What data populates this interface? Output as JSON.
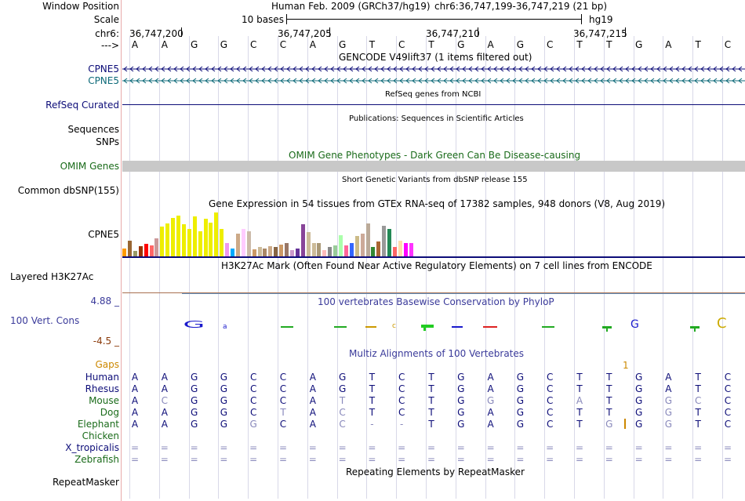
{
  "labels": {
    "window_position": "Window Position",
    "scale": "Scale",
    "chr": "chr6:",
    "arrows": "--->",
    "cpne5_a": "CPNE5",
    "cpne5_b": "CPNE5",
    "refseq_curated": "RefSeq Curated",
    "sequences": "Sequences",
    "snps": "SNPs",
    "omim_genes": "OMIM Genes",
    "common_dbsnp": "Common dbSNP(155)",
    "gtex_cpne5": "CPNE5",
    "layered_h3k27ac": "Layered H3K27Ac",
    "cons_max": "4.88 _",
    "vert_cons": "100 Vert. Cons",
    "cons_min": "-4.5 _",
    "gaps": "Gaps",
    "repeatmasker": "RepeatMasker"
  },
  "header": {
    "assembly": "Human Feb. 2009 (GRCh37/hg19)",
    "position": "chr6:36,747,199-36,747,219 (21 bp)",
    "scale_text": "10 bases",
    "scale_db": "hg19",
    "coords": [
      "36,747,200",
      "36,747,205",
      "36,747,210",
      "36,747,215"
    ]
  },
  "track_titles": {
    "gencode": "GENCODE V49lift37 (1 items filtered out)",
    "refseq": "RefSeq genes from NCBI",
    "publications": "Publications: Sequences in Scientific Articles",
    "omim": "OMIM Gene Phenotypes - Dark Green Can Be Disease-causing",
    "dbsnp": "Short Genetic Variants from dbSNP release 155",
    "gtex": "Gene Expression in 54 tissues from GTEx RNA-seq of 17382 samples, 948 donors (V8, Aug 2019)",
    "h3k27ac": "H3K27Ac Mark (Often Found Near Active Regulatory Elements) on 7 cell lines from ENCODE",
    "phylop": "100 vertebrates Basewise Conservation by PhyloP",
    "multiz": "Multiz Alignments of 100 Vertebrates",
    "repeatmasker": "Repeating Elements by RepeatMasker"
  },
  "reference_bases": [
    "A",
    "A",
    "G",
    "G",
    "C",
    "C",
    "A",
    "G",
    "T",
    "C",
    "T",
    "G",
    "A",
    "G",
    "C",
    "T",
    "T",
    "G",
    "A",
    "T",
    "C"
  ],
  "gaps_marker": "1",
  "maf": [
    {
      "species": "Human",
      "bases": [
        "A",
        "A",
        "G",
        "G",
        "C",
        "C",
        "A",
        "G",
        "T",
        "C",
        "T",
        "G",
        "A",
        "G",
        "C",
        "T",
        "T",
        "G",
        "A",
        "T",
        "C"
      ],
      "dim": []
    },
    {
      "species": "Rhesus",
      "bases": [
        "A",
        "A",
        "G",
        "G",
        "C",
        "C",
        "A",
        "G",
        "T",
        "C",
        "T",
        "G",
        "A",
        "G",
        "C",
        "T",
        "T",
        "G",
        "A",
        "T",
        "C"
      ],
      "dim": []
    },
    {
      "species": "Mouse",
      "bases": [
        "A",
        "C",
        "G",
        "G",
        "C",
        "C",
        "A",
        "T",
        "T",
        "C",
        "T",
        "G",
        "G",
        "G",
        "C",
        "A",
        "T",
        "G",
        "G",
        "C",
        "C"
      ],
      "dim": [
        1,
        7,
        12,
        15,
        18,
        19
      ]
    },
    {
      "species": "Dog",
      "bases": [
        "A",
        "A",
        "G",
        "G",
        "C",
        "T",
        "A",
        "C",
        "T",
        "C",
        "T",
        "G",
        "A",
        "G",
        "C",
        "T",
        "T",
        "G",
        "G",
        "T",
        "C"
      ],
      "dim": [
        5,
        7,
        18
      ]
    },
    {
      "species": "Elephant",
      "bases": [
        "A",
        "A",
        "G",
        "G",
        "G",
        "C",
        "A",
        "C",
        "-",
        "-",
        "T",
        "G",
        "A",
        "G",
        "C",
        "T",
        "G",
        "G",
        "G",
        "T",
        "C"
      ],
      "dim": [
        4,
        7,
        8,
        9,
        16,
        18
      ]
    },
    {
      "species": "Chicken",
      "bases": [],
      "dim": []
    },
    {
      "species": "X_tropicalis",
      "bases": [
        "=",
        "=",
        "=",
        "=",
        "=",
        "=",
        "=",
        "=",
        "=",
        "=",
        "=",
        "=",
        "=",
        "=",
        "=",
        "=",
        "=",
        "=",
        "=",
        "=",
        "="
      ],
      "dim": "all"
    },
    {
      "species": "Zebrafish",
      "bases": [
        "=",
        "=",
        "=",
        "=",
        "=",
        "=",
        "=",
        "=",
        "=",
        "=",
        "=",
        "=",
        "=",
        "=",
        "=",
        "=",
        "=",
        "=",
        "=",
        "=",
        "="
      ],
      "dim": "all"
    }
  ],
  "gtex_values": [
    18,
    35,
    12,
    22,
    28,
    25,
    40,
    65,
    72,
    85,
    90,
    70,
    60,
    88,
    55,
    82,
    74,
    96,
    60,
    30,
    18,
    50,
    60,
    55,
    15,
    20,
    18,
    22,
    20,
    26,
    30,
    14,
    18,
    70,
    54,
    30,
    30,
    14,
    20,
    25,
    46,
    24,
    30,
    44,
    50,
    72,
    20,
    32,
    68,
    60,
    20,
    34,
    30,
    30
  ],
  "gtex_colors": [
    "#ff9900",
    "#996633",
    "#999966",
    "#993300",
    "#ff0000",
    "#ff6666",
    "#cc9999",
    "#eeee00",
    "#eeee00",
    "#eeee00",
    "#eeee00",
    "#eeee00",
    "#eeee00",
    "#eeee00",
    "#eeee00",
    "#eeee00",
    "#eeee00",
    "#eeee00",
    "#eeee00",
    "#ee99ee",
    "#00aaff",
    "#ccaa88",
    "#ffccff",
    "#ccbbaa",
    "#cc9966",
    "#ccbb99",
    "#aa8866",
    "#ccaa88",
    "#886644",
    "#cc9966",
    "#997766",
    "#cc99cc",
    "#663399",
    "#884499",
    "#ccbb99",
    "#ccbb99",
    "#aa9977",
    "#ffbbbb",
    "#888888",
    "#99cc99",
    "#aaffaa",
    "#ff6699",
    "#3366ff",
    "#ccbb88",
    "#ccaa99",
    "#bbaa99",
    "#338833",
    "#aa6633",
    "#999999",
    "#228855",
    "#ff6666",
    "#ffddaa",
    "#ff00ff",
    "#ff33ff"
  ],
  "colors": {
    "gene_blue": "#0c0c78",
    "gene_teal": "#0c6978",
    "omim_green": "#1a6b1a",
    "phylop_blue": "#3a3a9a",
    "cons_min": "#8a3a0a",
    "gaps": "#cc8800",
    "divider": "#e8aaaa"
  }
}
